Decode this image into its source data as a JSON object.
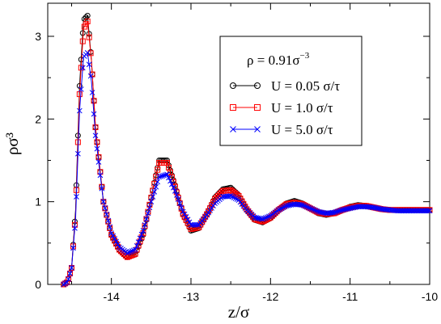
{
  "chart_data": {
    "type": "line",
    "xlabel": "z/σ",
    "ylabel": "ρσ³",
    "xlim": [
      -14.8,
      -10.0
    ],
    "ylim": [
      0,
      3.4
    ],
    "x_ticks": [
      -14,
      -13,
      -12,
      -11,
      -10
    ],
    "x_tick_labels": [
      "-14",
      "-13",
      "-12",
      "-11",
      "-10"
    ],
    "y_ticks": [
      0,
      1,
      2,
      3
    ],
    "y_tick_labels": [
      "0",
      "1",
      "2",
      "3"
    ],
    "grid": false,
    "legend_position": "top-right",
    "legend_title": "ρ = 0.91σ",
    "legend_title_exponent": "−3",
    "series": [
      {
        "name": "U = 0.05 σ/τ",
        "color": "#000000",
        "marker": "circle",
        "x": [
          -14.6,
          -14.55,
          -14.5,
          -14.45,
          -14.4,
          -14.35,
          -14.3,
          -14.25,
          -14.2,
          -14.1,
          -14.0,
          -13.9,
          -13.8,
          -13.7,
          -13.6,
          -13.5,
          -13.4,
          -13.3,
          -13.2,
          -13.1,
          -13.0,
          -12.9,
          -12.8,
          -12.7,
          -12.6,
          -12.5,
          -12.4,
          -12.3,
          -12.2,
          -12.1,
          -12.0,
          -11.9,
          -11.8,
          -11.7,
          -11.6,
          -11.5,
          -11.4,
          -11.3,
          -11.2,
          -11.1,
          -11.0,
          -10.9,
          -10.8,
          -10.7,
          -10.6,
          -10.5,
          -10.4,
          -10.3,
          -10.2,
          -10.1,
          -10.0
        ],
        "y": [
          0.0,
          0.03,
          0.2,
          0.9,
          2.4,
          3.2,
          3.25,
          2.7,
          1.9,
          1.0,
          0.6,
          0.42,
          0.33,
          0.36,
          0.6,
          1.05,
          1.5,
          1.5,
          1.2,
          0.85,
          0.65,
          0.68,
          0.85,
          1.05,
          1.15,
          1.17,
          1.08,
          0.9,
          0.78,
          0.75,
          0.8,
          0.9,
          0.98,
          1.01,
          0.98,
          0.92,
          0.86,
          0.84,
          0.86,
          0.9,
          0.94,
          0.96,
          0.95,
          0.93,
          0.91,
          0.9,
          0.9,
          0.9,
          0.9,
          0.9,
          0.9
        ]
      },
      {
        "name": "U = 1.0 σ/τ",
        "color": "#ff0000",
        "marker": "square",
        "x": [
          -14.6,
          -14.55,
          -14.5,
          -14.45,
          -14.4,
          -14.35,
          -14.3,
          -14.25,
          -14.2,
          -14.1,
          -14.0,
          -13.9,
          -13.8,
          -13.7,
          -13.6,
          -13.5,
          -13.4,
          -13.3,
          -13.2,
          -13.1,
          -13.0,
          -12.9,
          -12.8,
          -12.7,
          -12.6,
          -12.5,
          -12.4,
          -12.3,
          -12.2,
          -12.1,
          -12.0,
          -11.9,
          -11.8,
          -11.7,
          -11.6,
          -11.5,
          -11.4,
          -11.3,
          -11.2,
          -11.1,
          -11.0,
          -10.9,
          -10.8,
          -10.7,
          -10.6,
          -10.5,
          -10.4,
          -10.3,
          -10.2,
          -10.1,
          -10.0
        ],
        "y": [
          0.0,
          0.03,
          0.2,
          0.85,
          2.3,
          3.1,
          3.18,
          2.7,
          1.9,
          1.0,
          0.6,
          0.42,
          0.33,
          0.37,
          0.62,
          1.05,
          1.47,
          1.47,
          1.18,
          0.85,
          0.67,
          0.69,
          0.85,
          1.03,
          1.13,
          1.14,
          1.07,
          0.91,
          0.79,
          0.76,
          0.81,
          0.9,
          0.97,
          0.99,
          0.97,
          0.92,
          0.87,
          0.85,
          0.86,
          0.9,
          0.93,
          0.95,
          0.95,
          0.93,
          0.91,
          0.9,
          0.9,
          0.9,
          0.9,
          0.9,
          0.9
        ]
      },
      {
        "name": "U = 5.0 σ/τ",
        "color": "#0000ff",
        "marker": "x",
        "x": [
          -14.6,
          -14.55,
          -14.5,
          -14.45,
          -14.4,
          -14.35,
          -14.3,
          -14.25,
          -14.2,
          -14.1,
          -14.0,
          -13.9,
          -13.8,
          -13.7,
          -13.6,
          -13.5,
          -13.4,
          -13.3,
          -13.2,
          -13.1,
          -13.0,
          -12.9,
          -12.8,
          -12.7,
          -12.6,
          -12.5,
          -12.4,
          -12.3,
          -12.2,
          -12.1,
          -12.0,
          -11.9,
          -11.8,
          -11.7,
          -11.6,
          -11.5,
          -11.4,
          -11.3,
          -11.2,
          -11.1,
          -11.0,
          -10.9,
          -10.8,
          -10.7,
          -10.6,
          -10.5,
          -10.4,
          -10.3,
          -10.2,
          -10.1,
          -10.0
        ],
        "y": [
          0.0,
          0.03,
          0.2,
          0.8,
          2.1,
          2.75,
          2.8,
          2.45,
          1.8,
          1.0,
          0.62,
          0.45,
          0.38,
          0.42,
          0.65,
          1.0,
          1.3,
          1.33,
          1.13,
          0.88,
          0.72,
          0.72,
          0.84,
          0.98,
          1.06,
          1.07,
          1.02,
          0.9,
          0.81,
          0.79,
          0.83,
          0.9,
          0.95,
          0.97,
          0.96,
          0.92,
          0.88,
          0.86,
          0.87,
          0.9,
          0.92,
          0.94,
          0.94,
          0.93,
          0.91,
          0.9,
          0.89,
          0.89,
          0.89,
          0.89,
          0.89
        ]
      }
    ]
  }
}
